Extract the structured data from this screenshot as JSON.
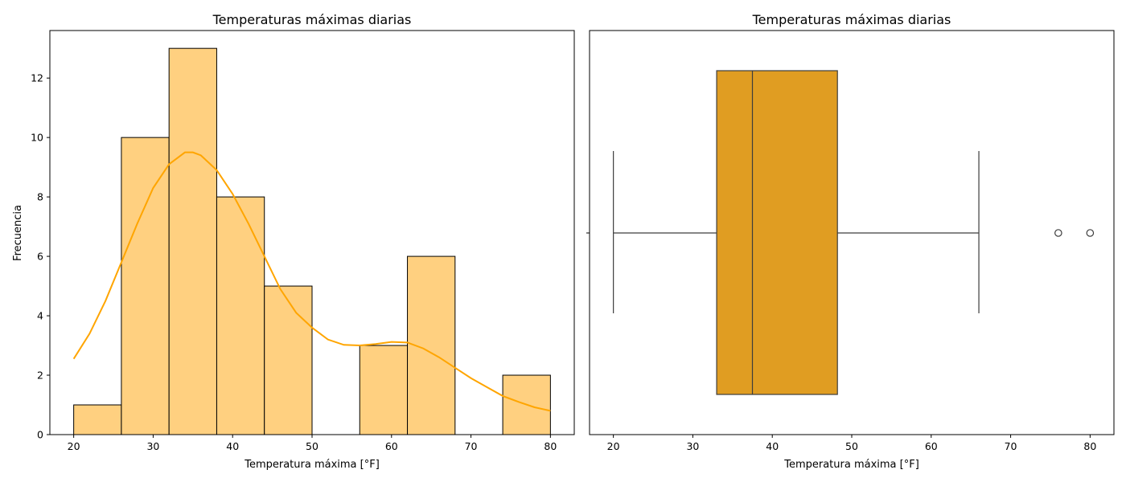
{
  "chart_data": [
    {
      "type": "histogram",
      "title": "Temperaturas máximas diarias",
      "xlabel": "Temperatura máxima [°F]",
      "ylabel": "Frecuencia",
      "xlim": [
        17,
        83
      ],
      "ylim": [
        0,
        13.6
      ],
      "xticks": [
        20,
        30,
        40,
        50,
        60,
        70,
        80
      ],
      "yticks": [
        0,
        2,
        4,
        6,
        8,
        10,
        12
      ],
      "bins": [
        {
          "start": 20,
          "end": 26,
          "count": 1
        },
        {
          "start": 26,
          "end": 32,
          "count": 10
        },
        {
          "start": 32,
          "end": 38,
          "count": 13
        },
        {
          "start": 38,
          "end": 44,
          "count": 8
        },
        {
          "start": 44,
          "end": 50,
          "count": 5
        },
        {
          "start": 50,
          "end": 56,
          "count": 0
        },
        {
          "start": 56,
          "end": 62,
          "count": 3
        },
        {
          "start": 62,
          "end": 68,
          "count": 6
        },
        {
          "start": 68,
          "end": 74,
          "count": 0
        },
        {
          "start": 74,
          "end": 80,
          "count": 2
        }
      ],
      "kde": {
        "x": [
          20,
          22,
          24,
          26,
          28,
          30,
          32,
          34,
          35,
          36,
          38,
          40,
          42,
          44,
          46,
          48,
          50,
          52,
          54,
          56,
          58,
          60,
          62,
          64,
          66,
          68,
          70,
          72,
          74,
          76,
          78,
          80
        ],
        "y": [
          2.55,
          3.4,
          4.5,
          5.8,
          7.1,
          8.3,
          9.1,
          9.5,
          9.5,
          9.4,
          8.9,
          8.1,
          7.1,
          6.0,
          4.9,
          4.1,
          3.6,
          3.2,
          3.02,
          3.0,
          3.05,
          3.12,
          3.1,
          2.9,
          2.6,
          2.25,
          1.9,
          1.6,
          1.3,
          1.1,
          0.92,
          0.8
        ]
      },
      "bar_color": "#ffd080",
      "line_color": "#ffa500",
      "grid": false
    },
    {
      "type": "boxplot",
      "title": "Temperaturas máximas diarias",
      "xlabel": "Temperatura máxima [°F]",
      "xlim": [
        17,
        83
      ],
      "xticks": [
        20,
        30,
        40,
        50,
        60,
        70,
        80
      ],
      "whisker_low": 20,
      "q1": 33,
      "median": 37.5,
      "q3": 48.2,
      "whisker_high": 66,
      "outliers": [
        76,
        80
      ],
      "box_color": "#e09d22",
      "grid": false
    }
  ]
}
